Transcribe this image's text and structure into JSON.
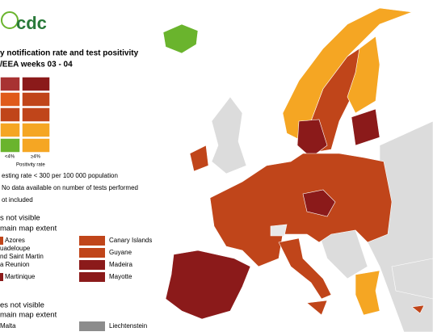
{
  "header": {
    "logo": "cdc",
    "title": [
      "y notification rate and test positivity",
      "/EEA weeks 03 - 04"
    ]
  },
  "legend": {
    "x_labels": [
      "<4%",
      "≥4%"
    ],
    "x_title": "Positivity rate",
    "notes": [
      "esting rate < 300 per 100 000 population",
      "No data available on number of tests performed",
      "ot included"
    ]
  },
  "regions_section": {
    "title": [
      "s not visible",
      "main map extent"
    ],
    "items": [
      "Azores",
      "Canary Islands",
      "uadeloupe",
      "nd Saint Martin",
      "Guyane",
      "a Reunion",
      "Madeira",
      "Martinique",
      "Mayotte"
    ]
  },
  "countries_section": {
    "title": [
      "es not visible",
      "main map extent"
    ],
    "items": [
      "Malta",
      "Liechtenstein"
    ]
  }
}
